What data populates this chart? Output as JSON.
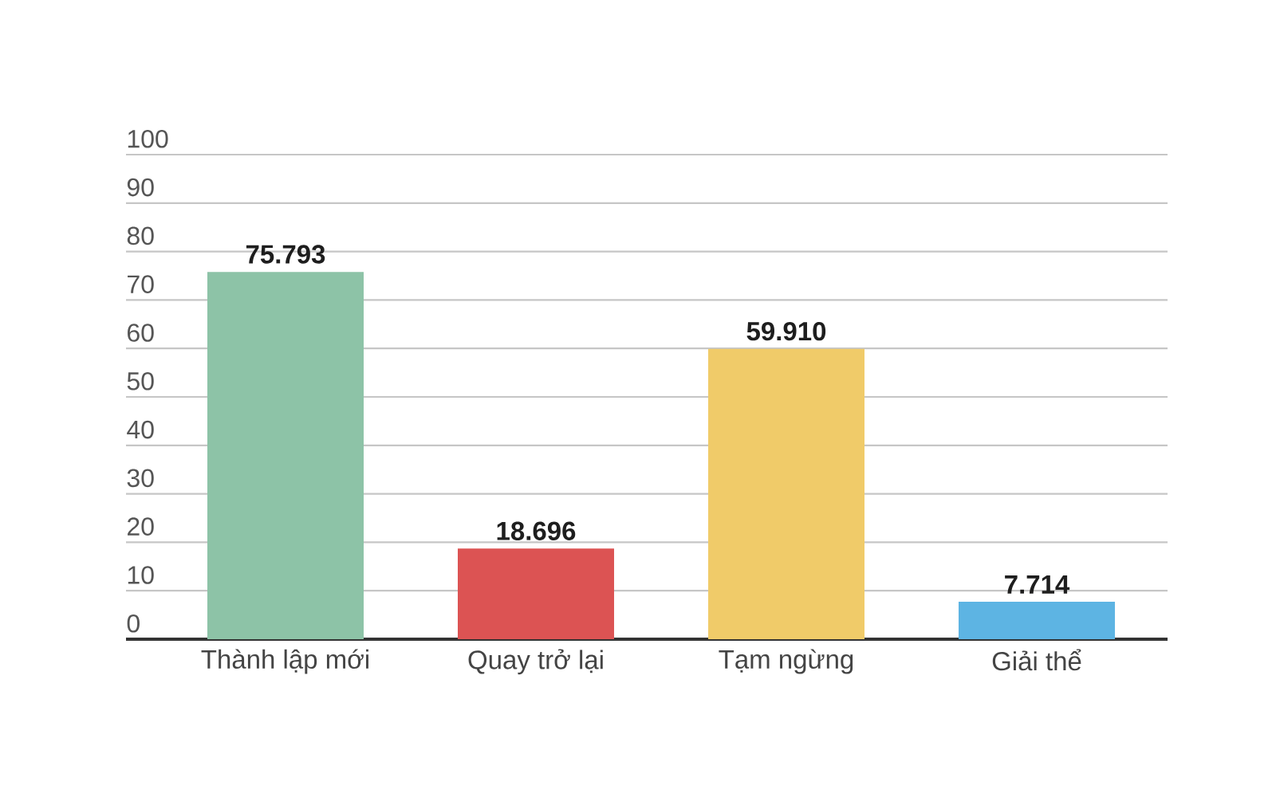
{
  "chart_data": {
    "type": "bar",
    "categories": [
      "Thành lập mới",
      "Quay trở lại",
      "Tạm ngừng",
      "Giải thể"
    ],
    "values": [
      75.793,
      18.696,
      59.91,
      7.714
    ],
    "value_labels": [
      "75.793",
      "18.696",
      "59.910",
      "7.714"
    ],
    "colors": [
      "#8dc3a7",
      "#dc5353",
      "#f0cb69",
      "#5db4e3"
    ],
    "ylim": [
      0,
      100
    ],
    "yticks": [
      0,
      10,
      20,
      30,
      40,
      50,
      60,
      70,
      80,
      90,
      100
    ],
    "grid": "y"
  }
}
